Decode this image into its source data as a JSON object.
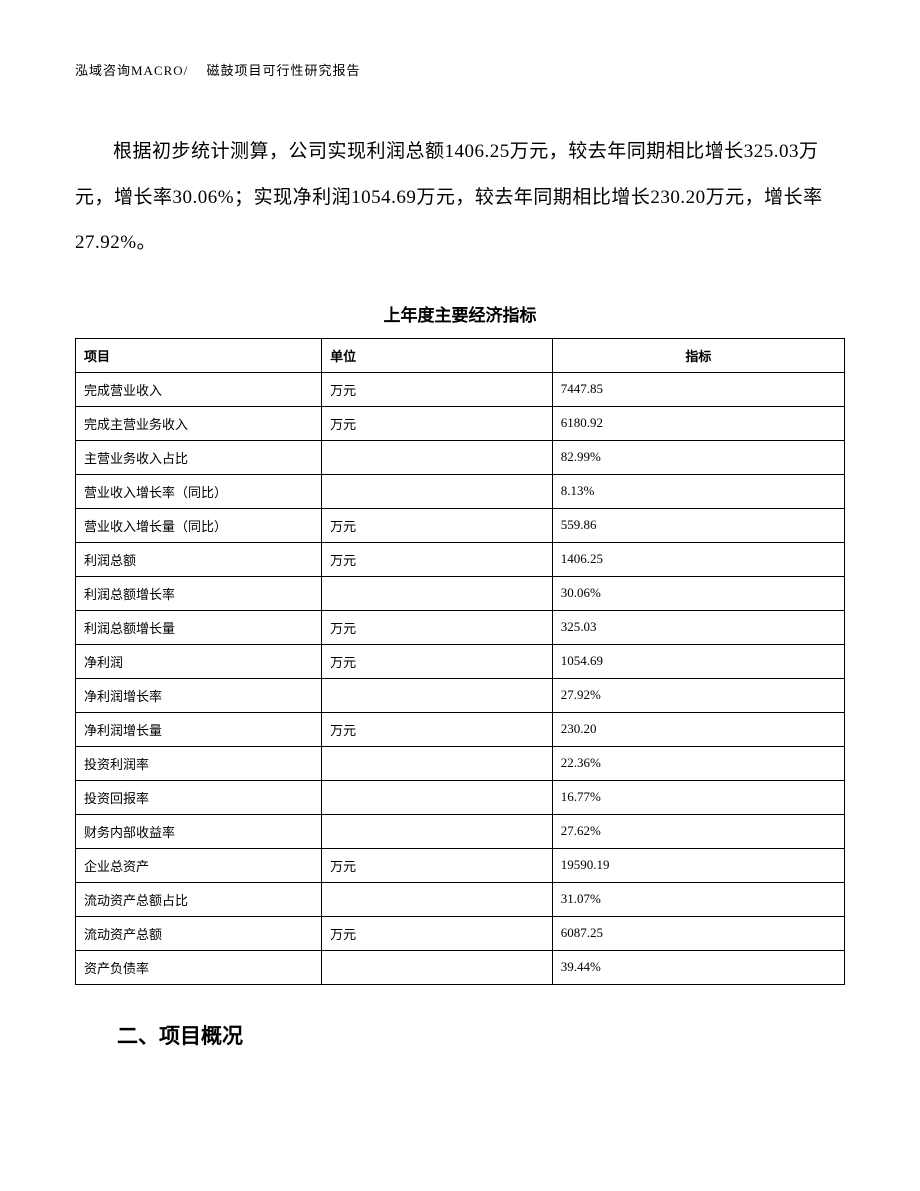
{
  "header": {
    "text": "泓域咨询MACRO/　 磁鼓项目可行性研究报告"
  },
  "paragraph": {
    "text": "根据初步统计测算，公司实现利润总额1406.25万元，较去年同期相比增长325.03万元，增长率30.06%；实现净利润1054.69万元，较去年同期相比增长230.20万元，增长率27.92%。"
  },
  "table": {
    "title": "上年度主要经济指标",
    "columns": [
      "项目",
      "单位",
      "指标"
    ],
    "rows": [
      [
        "完成营业收入",
        "万元",
        "7447.85"
      ],
      [
        "完成主营业务收入",
        "万元",
        "6180.92"
      ],
      [
        "主营业务收入占比",
        "",
        "82.99%"
      ],
      [
        "营业收入增长率（同比）",
        "",
        "8.13%"
      ],
      [
        "营业收入增长量（同比）",
        "万元",
        "559.86"
      ],
      [
        "利润总额",
        "万元",
        "1406.25"
      ],
      [
        "利润总额增长率",
        "",
        "30.06%"
      ],
      [
        "利润总额增长量",
        "万元",
        "325.03"
      ],
      [
        "净利润",
        "万元",
        "1054.69"
      ],
      [
        "净利润增长率",
        "",
        "27.92%"
      ],
      [
        "净利润增长量",
        "万元",
        "230.20"
      ],
      [
        "投资利润率",
        "",
        "22.36%"
      ],
      [
        "投资回报率",
        "",
        "16.77%"
      ],
      [
        "财务内部收益率",
        "",
        "27.62%"
      ],
      [
        "企业总资产",
        "万元",
        "19590.19"
      ],
      [
        "流动资产总额占比",
        "",
        "31.07%"
      ],
      [
        "流动资产总额",
        "万元",
        "6087.25"
      ],
      [
        "资产负债率",
        "",
        "39.44%"
      ]
    ]
  },
  "section": {
    "heading": "二、项目概况"
  }
}
